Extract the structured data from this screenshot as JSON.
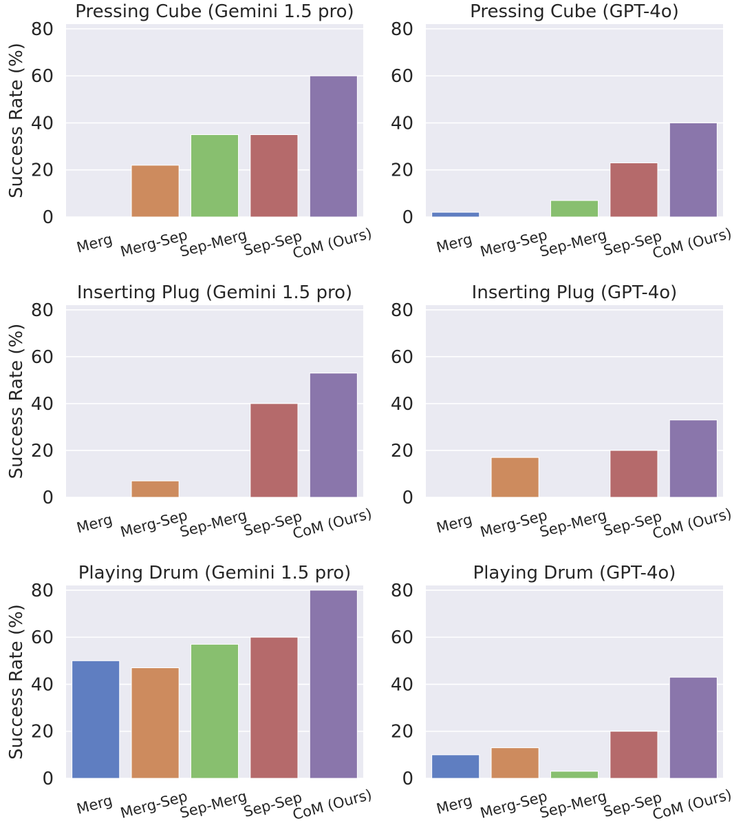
{
  "figure": {
    "colors": {
      "background": "#eaeaf2",
      "grid": "#ffffff",
      "text": "#262626",
      "bars": [
        "#5f7ec1",
        "#cd8b5e",
        "#88bf6f",
        "#b56a6b",
        "#8a76ab"
      ]
    }
  },
  "chart_data": [
    {
      "type": "bar",
      "title": "Pressing Cube (Gemini 1.5 pro)",
      "categories": [
        "Merg",
        "Merg-Sep",
        "Sep-Merg",
        "Sep-Sep",
        "CoM (Ours)"
      ],
      "values": [
        0,
        22,
        35,
        35,
        60
      ],
      "xlabel": "",
      "ylabel": "Success Rate (%)",
      "ylim": [
        0,
        82
      ],
      "yticks": [
        0,
        20,
        40,
        60,
        80
      ],
      "grid": true
    },
    {
      "type": "bar",
      "title": "Pressing Cube (GPT-4o)",
      "categories": [
        "Merg",
        "Merg-Sep",
        "Sep-Merg",
        "Sep-Sep",
        "CoM (Ours)"
      ],
      "values": [
        2,
        0,
        7,
        23,
        40
      ],
      "xlabel": "",
      "ylabel": "",
      "ylim": [
        0,
        82
      ],
      "yticks": [
        0,
        20,
        40,
        60,
        80
      ],
      "grid": true
    },
    {
      "type": "bar",
      "title": "Inserting Plug (Gemini 1.5 pro)",
      "categories": [
        "Merg",
        "Merg-Sep",
        "Sep-Merg",
        "Sep-Sep",
        "CoM (Ours)"
      ],
      "values": [
        0,
        7,
        0,
        40,
        53
      ],
      "xlabel": "",
      "ylabel": "Success Rate (%)",
      "ylim": [
        0,
        82
      ],
      "yticks": [
        0,
        20,
        40,
        60,
        80
      ],
      "grid": true
    },
    {
      "type": "bar",
      "title": "Inserting Plug (GPT-4o)",
      "categories": [
        "Merg",
        "Merg-Sep",
        "Sep-Merg",
        "Sep-Sep",
        "CoM (Ours)"
      ],
      "values": [
        0,
        17,
        0,
        20,
        33
      ],
      "xlabel": "",
      "ylabel": "",
      "ylim": [
        0,
        82
      ],
      "yticks": [
        0,
        20,
        40,
        60,
        80
      ],
      "grid": true
    },
    {
      "type": "bar",
      "title": "Playing Drum (Gemini 1.5 pro)",
      "categories": [
        "Merg",
        "Merg-Sep",
        "Sep-Merg",
        "Sep-Sep",
        "CoM (Ours)"
      ],
      "values": [
        50,
        47,
        57,
        60,
        80
      ],
      "xlabel": "",
      "ylabel": "Success Rate (%)",
      "ylim": [
        0,
        82
      ],
      "yticks": [
        0,
        20,
        40,
        60,
        80
      ],
      "grid": true
    },
    {
      "type": "bar",
      "title": "Playing Drum (GPT-4o)",
      "categories": [
        "Merg",
        "Merg-Sep",
        "Sep-Merg",
        "Sep-Sep",
        "CoM (Ours)"
      ],
      "values": [
        10,
        13,
        3,
        20,
        43
      ],
      "xlabel": "",
      "ylabel": "",
      "ylim": [
        0,
        82
      ],
      "yticks": [
        0,
        20,
        40,
        60,
        80
      ],
      "grid": true
    }
  ]
}
